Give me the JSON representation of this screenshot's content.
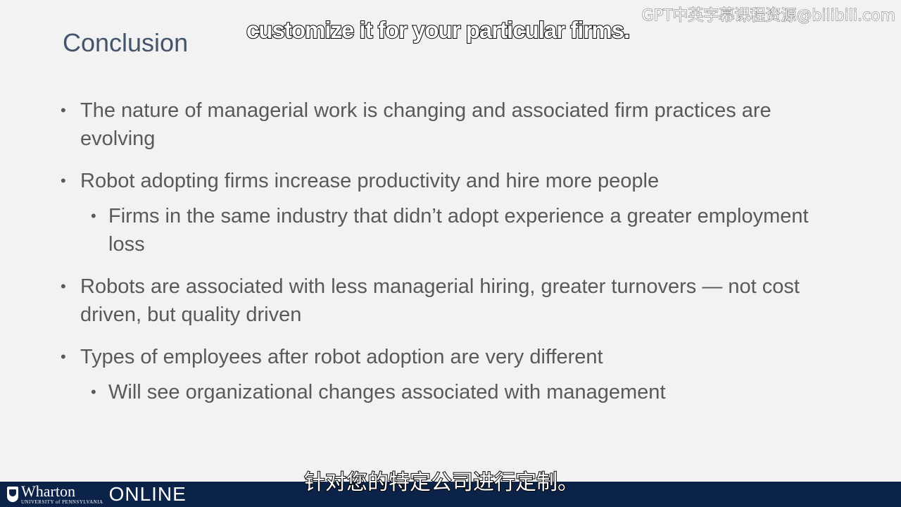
{
  "slide": {
    "title": "Conclusion",
    "bullets": [
      {
        "text": "The nature of managerial work is changing and associated firm practices are evolving",
        "sub": []
      },
      {
        "text": "Robot adopting firms increase productivity and hire more people",
        "sub": [
          "Firms in the same industry that didn’t adopt experience a greater employment loss"
        ]
      },
      {
        "text": "Robots are associated with less managerial hiring, greater turnovers — not cost driven, but quality driven",
        "sub": []
      },
      {
        "text": "Types of employees after robot adoption are very different",
        "sub": [
          "Will see organizational changes associated with management"
        ]
      }
    ]
  },
  "captions": {
    "english": "customize it for your particular firms.",
    "chinese": "针对您的特定公司进行定制。"
  },
  "watermark": "GPT中英字幕课程资源@bilibili.com",
  "footer": {
    "logo_name": "Wharton",
    "logo_subtext": "UNIVERSITY of PENNSYLVANIA",
    "logo_online": "ONLINE"
  },
  "colors": {
    "background": "#f2f2f2",
    "title": "#44546a",
    "body_text": "#595959",
    "footer_bar": "#0b2348"
  }
}
